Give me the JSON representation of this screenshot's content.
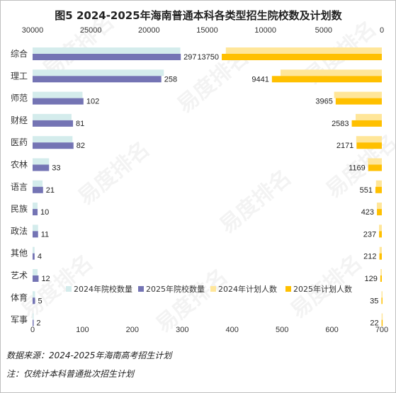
{
  "title": "图5  2024-2025年海南普通本科各类型招生院校数及计划数",
  "chart_data": {
    "type": "bar",
    "title": "图5  2024-2025年海南普通本科各类型招生院校数及计划数",
    "categories": [
      "综合",
      "理工",
      "师范",
      "财经",
      "医药",
      "农林",
      "语言",
      "民族",
      "政法",
      "其他",
      "艺术",
      "体育",
      "军事"
    ],
    "bottom_axis": {
      "range": [
        0,
        700
      ],
      "ticks": [
        "0",
        "100",
        "200",
        "300",
        "400",
        "500",
        "600",
        "700"
      ]
    },
    "top_axis": {
      "range": [
        30000,
        0
      ],
      "reversed": true,
      "ticks": [
        "30000",
        "25000",
        "20000",
        "15000",
        "10000",
        "5000",
        "0"
      ]
    },
    "series": [
      {
        "name": "2024年院校数量",
        "axis": "bottom",
        "color": "#d4ecec",
        "values": [
          296,
          263,
          100,
          78,
          80,
          33,
          20,
          10,
          11,
          4,
          10,
          5,
          2
        ]
      },
      {
        "name": "2025年院校数量",
        "axis": "bottom",
        "color": "#7474b4",
        "values": [
          297,
          258,
          102,
          81,
          82,
          33,
          21,
          10,
          11,
          4,
          12,
          5,
          2
        ]
      },
      {
        "name": "2024年计划人数",
        "axis": "top",
        "color": "#ffe699",
        "values": [
          13400,
          8700,
          4100,
          2250,
          2200,
          1200,
          500,
          430,
          240,
          200,
          110,
          30,
          20
        ]
      },
      {
        "name": "2025年计划人数",
        "axis": "top",
        "color": "#ffc000",
        "values": [
          13750,
          9441,
          3965,
          2583,
          2171,
          1169,
          551,
          423,
          237,
          212,
          129,
          35,
          22
        ]
      }
    ],
    "data_labels": {
      "2025年院校数量": [
        "297",
        "258",
        "102",
        "81",
        "82",
        "33",
        "21",
        "10",
        "11",
        "4",
        "12",
        "5",
        "2"
      ],
      "2025年计划人数": [
        "13750",
        "9441",
        "3965",
        "2583",
        "2171",
        "1169",
        "551",
        "423",
        "237",
        "212",
        "129",
        "35",
        "22"
      ]
    },
    "legend": {
      "placement": "lower-right",
      "entries": [
        "2024年院校数量",
        "2025年院校数量",
        "2024年计划人数",
        "2025年计划人数"
      ]
    },
    "grid": false
  },
  "notes": {
    "source": "数据来源：2024-2025年海南高考招生计划",
    "footnote": "注：仅统计本科普通批次招生计划"
  },
  "watermark": {
    "text": "易度排名",
    "sub": "EDU Ranking.cn"
  }
}
